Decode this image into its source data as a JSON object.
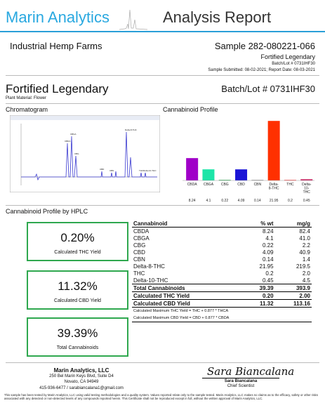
{
  "header": {
    "brand": "Marin Analytics",
    "title": "Analysis Report"
  },
  "client": {
    "name": "Industrial Hemp Farms"
  },
  "sample": {
    "id_line": "Sample 282-080221-066",
    "product_small": "Fortified Legendary",
    "batch_small": "Batch/Lot # 0731IHF30",
    "dates_line": "Sample Submitted: 08-02-2021; Report Date: 08-03-2021"
  },
  "product": {
    "name": "Fortified Legendary",
    "plant_material": "Plant Material: Flower",
    "batch_big": "Batch/Lot # 0731IHF30"
  },
  "sections": {
    "chromatogram": "Chromatogram",
    "profile": "Cannabinoid Profile",
    "hplc": "Cannabinoid Profile by HPLC"
  },
  "chromatogram_labels": [
    "CBDA",
    "CBGA",
    "CBG",
    "CBD",
    "CBN",
    "Delta-8-THC",
    "THC",
    "Delta-10-THC"
  ],
  "chart_data": {
    "type": "bar",
    "title": "Cannabinoid Profile",
    "categories": [
      "CBDA",
      "CBGA",
      "CBG",
      "CBD",
      "CBN",
      "Delta-8-THC",
      "THC",
      "Delta-10-THC"
    ],
    "values": [
      8.24,
      4.1,
      0.22,
      4.09,
      0.14,
      21.95,
      0.2,
      0.45
    ],
    "value_labels": [
      "8.24",
      "4.1",
      "0.22",
      "4.09",
      "0.14",
      "21.95",
      "0.2",
      "0.45"
    ],
    "colors": [
      "#a000c8",
      "#1de5a8",
      "#2fa84f",
      "#1a14d6",
      "#222222",
      "#ff3000",
      "#ff2d2d",
      "#cc2060"
    ],
    "ylim": [
      0,
      22
    ],
    "grid": false,
    "legend": "none"
  },
  "yields": [
    {
      "value": "0.20%",
      "label": "Calculated THC Yield"
    },
    {
      "value": "11.32%",
      "label": "Calculated CBD Yield"
    },
    {
      "value": "39.39%",
      "label": "Total Cannabinoids"
    }
  ],
  "table": {
    "headers": [
      "Cannabinoid",
      "% wt",
      "mg/g"
    ],
    "rows": [
      [
        "CBDA",
        "8.24",
        "82.4"
      ],
      [
        "CBGA",
        "4.1",
        "41.0"
      ],
      [
        "CBG",
        "0.22",
        "2.2"
      ],
      [
        "CBD",
        "4.09",
        "40.9"
      ],
      [
        "CBN",
        "0.14",
        "1.4"
      ],
      [
        "Delta-8-THC",
        "21.95",
        "219.5"
      ],
      [
        "THC",
        "0.2",
        "2.0"
      ],
      [
        "Delta-10-THC",
        "0.45",
        "4.5"
      ]
    ],
    "total": [
      "Total Cannabinoids",
      "39.39",
      "393.9"
    ],
    "thc_yield": [
      "Calculated THC Yield",
      "0.20",
      "2.00"
    ],
    "cbd_yield": [
      "Calculated CBD Yield",
      "11.32",
      "113.16"
    ],
    "note1": "Calculated Maximum THC Yield = THC + 0.877 * THCA",
    "note2": "Calculated Maximum CBD Yield = CBD + 0.877 * CBDA"
  },
  "lab": {
    "name": "Marin Analytics, LLC",
    "addr1": "250 Bel Marin Keys Blvd, Suite D4",
    "addr2": "Novato, CA 94949",
    "contact": "415-936-6477 / sarabiancalana1@gmail.com"
  },
  "signer": {
    "signature": "Sara Biancalana",
    "name": "Sara Biancalana",
    "title": "Chief Scientist"
  },
  "disclaimer": "This sample has been tested by Marin Analytics, LLC using valid testing methodologies and a quality system. Values reported relate only to the sample tested. Marin Analytics, LLC makes no claims as to the efficacy, safety or other risks associated with any detected or non-detected levels of any compounds reported herein. This Certificate shall not be reproduced except in full, without the written approval of Marin Analytics, LLC."
}
